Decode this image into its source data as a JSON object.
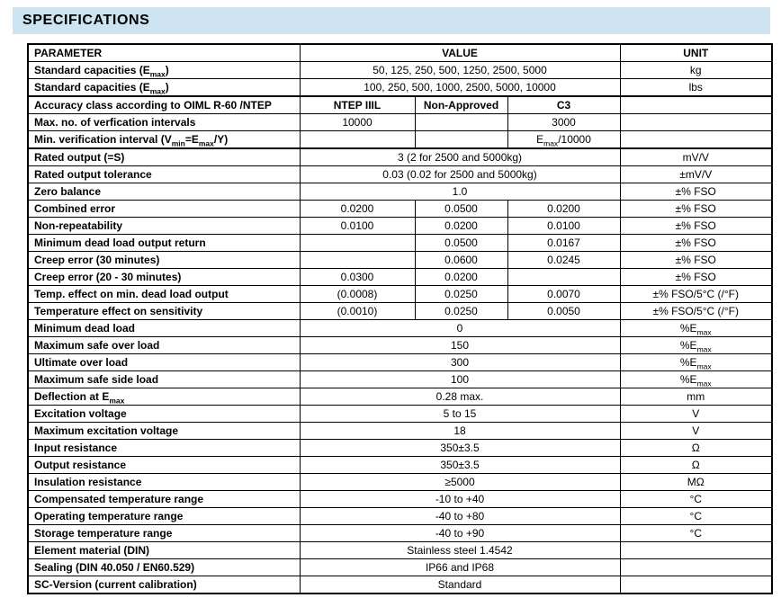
{
  "title": "SPECIFICATIONS",
  "colors": {
    "title_bar_bg": "#cde3f1",
    "border": "#000000",
    "text": "#000000",
    "page_bg": "#ffffff"
  },
  "table": {
    "headers": {
      "param": "PARAMETER",
      "value": "VALUE",
      "unit": "UNIT"
    },
    "subscript_note": "segments between ~ markers render as subscript",
    "rows": [
      {
        "param": "Standard capacities (E~max~)",
        "values": [
          "50, 125, 250, 500, 1250, 2500, 5000"
        ],
        "unit": "kg"
      },
      {
        "param": "Standard capacities (E~max~)",
        "values": [
          "100, 250, 500, 1000, 2500, 5000, 10000"
        ],
        "unit": "lbs",
        "sep": true
      },
      {
        "param": "Accuracy class according to OIML R-60 /NTEP",
        "values": [
          "NTEP IIIL",
          "Non-Approved",
          "C3"
        ],
        "unit": "",
        "bold_values": true
      },
      {
        "param": "Max. no. of verfication intervals",
        "values": [
          "10000",
          "",
          "3000"
        ],
        "unit": ""
      },
      {
        "param": "Min. verification interval (V~min~=E~max~/Y)",
        "values": [
          "",
          "",
          "E~max~/10000"
        ],
        "unit": "",
        "sep": true
      },
      {
        "param": "Rated output (=S)",
        "values": [
          "3 (2 for 2500 and 5000kg)"
        ],
        "unit": "mV/V"
      },
      {
        "param": "Rated output tolerance",
        "values": [
          "0.03 (0.02 for 2500 and 5000kg)"
        ],
        "unit": "±mV/V"
      },
      {
        "param": "Zero balance",
        "values": [
          "1.0"
        ],
        "unit": "±% FSO"
      },
      {
        "param": "Combined error",
        "values": [
          "0.0200",
          "0.0500",
          "0.0200"
        ],
        "unit": "±% FSO"
      },
      {
        "param": "Non-repeatability",
        "values": [
          "0.0100",
          "0.0200",
          "0.0100"
        ],
        "unit": "±% FSO"
      },
      {
        "param": "Minimum dead load output return",
        "values": [
          "",
          "0.0500",
          "0.0167"
        ],
        "unit": "±% FSO"
      },
      {
        "param": "Creep error (30 minutes)",
        "values": [
          "",
          "0.0600",
          "0.0245"
        ],
        "unit": "±% FSO"
      },
      {
        "param": "Creep error (20 - 30 minutes)",
        "values": [
          "0.0300",
          "0.0200",
          ""
        ],
        "unit": "±% FSO"
      },
      {
        "param": "Temp. effect on min. dead load output",
        "values": [
          "(0.0008)",
          "0.0250",
          "0.0070"
        ],
        "unit": "±% FSO/5°C (/°F)"
      },
      {
        "param": "Temperature effect on sensitivity",
        "values": [
          "(0.0010)",
          "0.0250",
          "0.0050"
        ],
        "unit": "±% FSO/5°C (/°F)"
      },
      {
        "param": "Minimum dead load",
        "values": [
          "0"
        ],
        "unit": "%E~max~"
      },
      {
        "param": "Maximum safe over load",
        "values": [
          "150"
        ],
        "unit": "%E~max~"
      },
      {
        "param": "Ultimate over load",
        "values": [
          "300"
        ],
        "unit": "%E~max~"
      },
      {
        "param": "Maximum safe side load",
        "values": [
          "100"
        ],
        "unit": "%E~max~"
      },
      {
        "param": "Deflection at E~max~",
        "values": [
          "0.28 max."
        ],
        "unit": "mm"
      },
      {
        "param": "Excitation voltage",
        "values": [
          "5 to 15"
        ],
        "unit": "V"
      },
      {
        "param": "Maximum excitation voltage",
        "values": [
          "18"
        ],
        "unit": "V"
      },
      {
        "param": "Input resistance",
        "values": [
          "350±3.5"
        ],
        "unit": "Ω"
      },
      {
        "param": "Output resistance",
        "values": [
          "350±3.5"
        ],
        "unit": "Ω"
      },
      {
        "param": "Insulation resistance",
        "values": [
          "≥5000"
        ],
        "unit": "MΩ"
      },
      {
        "param": "Compensated temperature range",
        "values": [
          "-10 to +40"
        ],
        "unit": "°C"
      },
      {
        "param": "Operating temperature range",
        "values": [
          "-40 to +80"
        ],
        "unit": "°C"
      },
      {
        "param": "Storage temperature range",
        "values": [
          "-40 to +90"
        ],
        "unit": "°C"
      },
      {
        "param": "Element material (DIN)",
        "values": [
          "Stainless steel 1.4542"
        ],
        "unit": ""
      },
      {
        "param": "Sealing (DIN 40.050 / EN60.529)",
        "values": [
          "IP66 and IP68"
        ],
        "unit": ""
      },
      {
        "param": "SC-Version (current calibration)",
        "values": [
          "Standard"
        ],
        "unit": ""
      }
    ]
  }
}
